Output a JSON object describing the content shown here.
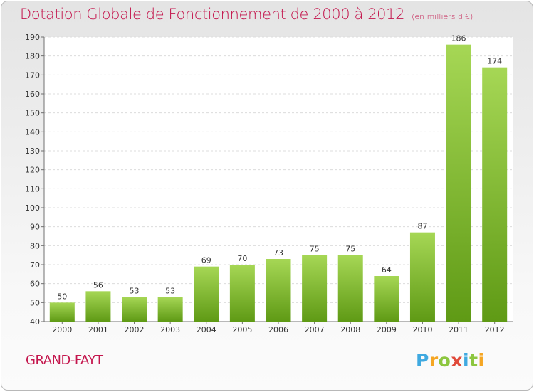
{
  "header": {
    "title": "Dotation Globale de Fonctionnement de 2000 à 2012",
    "unit": "(en milliers d'€)"
  },
  "footer": {
    "commune": "GRAND-FAYT",
    "logo": {
      "letters": [
        "P",
        "r",
        "o",
        "x",
        "i",
        "t",
        "i"
      ],
      "colors": [
        "#3fa9e0",
        "#f5a623",
        "#8cc63f",
        "#e04a3a",
        "#3fa9e0",
        "#8cc63f",
        "#f5a623"
      ]
    }
  },
  "colors": {
    "title": "#c4164d",
    "bar_light": "#a6d755",
    "bar_dark": "#5f9a15",
    "grid": "#dcdcdc",
    "axis": "#707070",
    "text": "#333333"
  },
  "chart_data": {
    "type": "bar",
    "title": "Dotation Globale de Fonctionnement de 2000 à 2012",
    "subtitle": "(en milliers d'€)",
    "xlabel": "",
    "ylabel": "",
    "categories": [
      "2000",
      "2001",
      "2002",
      "2003",
      "2004",
      "2005",
      "2006",
      "2007",
      "2008",
      "2009",
      "2010",
      "2011",
      "2012"
    ],
    "values": [
      50,
      56,
      53,
      53,
      69,
      70,
      73,
      75,
      75,
      64,
      87,
      186,
      174
    ],
    "ylim": [
      40,
      190
    ],
    "ytick_step": 10,
    "grid": true,
    "legend": "none",
    "data_labels": true
  }
}
